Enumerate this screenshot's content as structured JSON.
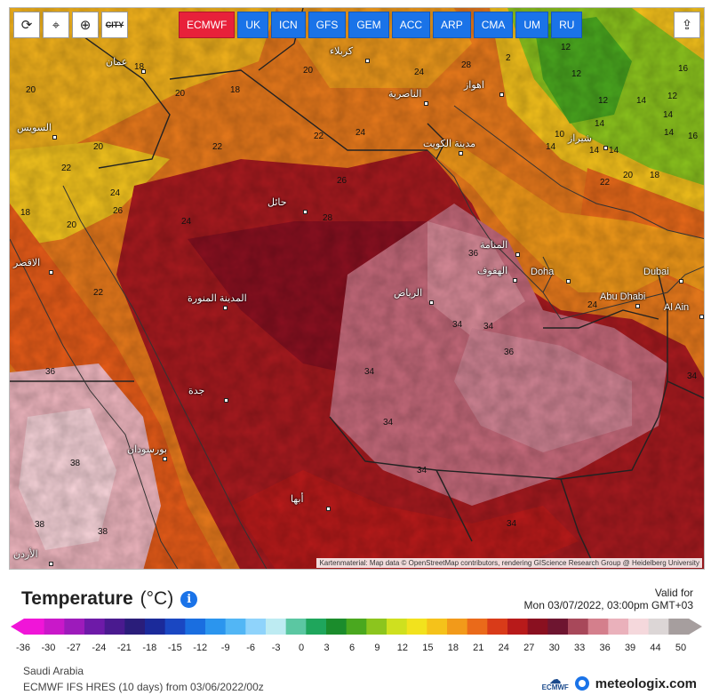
{
  "toolbar": {
    "buttons": [
      {
        "name": "refresh-button",
        "icon": "refresh-icon",
        "glyph": "⟳"
      },
      {
        "name": "location-button",
        "icon": "map-pin-icon",
        "glyph": "⌖"
      },
      {
        "name": "zoom-button",
        "icon": "zoom-icon",
        "glyph": "⊕"
      },
      {
        "name": "city-toggle-button",
        "icon": "city-icon",
        "glyph": "CITY"
      }
    ],
    "models": [
      "ECMWF",
      "UK",
      "ICN",
      "GFS",
      "GEM",
      "ACC",
      "ARP",
      "CMA",
      "UM",
      "RU"
    ],
    "active_model": "ECMWF",
    "share_glyph": "⇪"
  },
  "map": {
    "isotherm_labels": [
      {
        "text": "18",
        "pos": [
          140,
          62
        ]
      },
      {
        "text": "20",
        "pos": [
          330,
          66
        ]
      },
      {
        "text": "18",
        "pos": [
          248,
          88
        ]
      },
      {
        "text": "20",
        "pos": [
          186,
          92
        ]
      },
      {
        "text": "20",
        "pos": [
          94,
          152
        ]
      },
      {
        "text": "22",
        "pos": [
          228,
          152
        ]
      },
      {
        "text": "22",
        "pos": [
          342,
          140
        ]
      },
      {
        "text": "24",
        "pos": [
          389,
          136
        ]
      },
      {
        "text": "24",
        "pos": [
          455,
          68
        ]
      },
      {
        "text": "28",
        "pos": [
          508,
          60
        ]
      },
      {
        "text": "22",
        "pos": [
          58,
          176
        ]
      },
      {
        "text": "24",
        "pos": [
          113,
          204
        ]
      },
      {
        "text": "26",
        "pos": [
          116,
          224
        ]
      },
      {
        "text": "24",
        "pos": [
          193,
          236
        ]
      },
      {
        "text": "28",
        "pos": [
          352,
          232
        ]
      },
      {
        "text": "26",
        "pos": [
          368,
          190
        ]
      },
      {
        "text": "20",
        "pos": [
          64,
          240
        ]
      },
      {
        "text": "22",
        "pos": [
          94,
          316
        ]
      },
      {
        "text": "36",
        "pos": [
          516,
          272
        ]
      },
      {
        "text": "34",
        "pos": [
          498,
          352
        ]
      },
      {
        "text": "34",
        "pos": [
          533,
          354
        ]
      },
      {
        "text": "36",
        "pos": [
          556,
          383
        ]
      },
      {
        "text": "34",
        "pos": [
          399,
          405
        ]
      },
      {
        "text": "34",
        "pos": [
          420,
          462
        ]
      },
      {
        "text": "34",
        "pos": [
          458,
          516
        ]
      },
      {
        "text": "34",
        "pos": [
          559,
          576
        ]
      },
      {
        "text": "34",
        "pos": [
          762,
          410
        ]
      },
      {
        "text": "36",
        "pos": [
          40,
          405
        ]
      },
      {
        "text": "38",
        "pos": [
          68,
          508
        ]
      },
      {
        "text": "38",
        "pos": [
          28,
          577
        ]
      },
      {
        "text": "38",
        "pos": [
          99,
          585
        ]
      },
      {
        "text": "40",
        "pos": [
          84,
          631
        ]
      },
      {
        "text": "24",
        "pos": [
          650,
          330
        ]
      },
      {
        "text": "22",
        "pos": [
          664,
          192
        ]
      },
      {
        "text": "20",
        "pos": [
          690,
          184
        ]
      },
      {
        "text": "18",
        "pos": [
          720,
          184
        ]
      },
      {
        "text": "14",
        "pos": [
          603,
          152
        ]
      },
      {
        "text": "14",
        "pos": [
          652,
          156
        ]
      },
      {
        "text": "14",
        "pos": [
          674,
          156
        ]
      },
      {
        "text": "10",
        "pos": [
          613,
          138
        ]
      },
      {
        "text": "12",
        "pos": [
          620,
          40
        ]
      },
      {
        "text": "12",
        "pos": [
          662,
          100
        ]
      },
      {
        "text": "12",
        "pos": [
          740,
          95
        ]
      },
      {
        "text": "14",
        "pos": [
          705,
          100
        ]
      },
      {
        "text": "14",
        "pos": [
          735,
          116
        ]
      },
      {
        "text": "14",
        "pos": [
          736,
          136
        ]
      },
      {
        "text": "14",
        "pos": [
          658,
          126
        ]
      },
      {
        "text": "12",
        "pos": [
          632,
          70
        ]
      },
      {
        "text": "16",
        "pos": [
          752,
          64
        ]
      },
      {
        "text": "16",
        "pos": [
          763,
          140
        ]
      },
      {
        "text": "18",
        "pos": [
          12,
          226
        ]
      },
      {
        "text": "20",
        "pos": [
          18,
          88
        ]
      },
      {
        "text": "2",
        "pos": [
          558,
          52
        ]
      }
    ],
    "cities": [
      {
        "text": "كربلاء",
        "pos": [
          360,
          44
        ]
      },
      {
        "text": "عمان",
        "pos": [
          108,
          56
        ]
      },
      {
        "text": "الناصرية",
        "pos": [
          426,
          92
        ]
      },
      {
        "text": "اهواز",
        "pos": [
          511,
          82
        ]
      },
      {
        "text": "السويس",
        "pos": [
          8,
          130
        ]
      },
      {
        "text": "مدينة الكويت",
        "pos": [
          465,
          148
        ]
      },
      {
        "text": "شيراز",
        "pos": [
          628,
          142
        ]
      },
      {
        "text": "حائل",
        "pos": [
          290,
          214
        ]
      },
      {
        "text": "المنامة",
        "pos": [
          529,
          262
        ]
      },
      {
        "text": "الهفوف",
        "pos": [
          526,
          291
        ]
      },
      {
        "text": "Doha",
        "pos": [
          586,
          292
        ]
      },
      {
        "text": "Dubai",
        "pos": [
          713,
          292
        ]
      },
      {
        "text": "المدينة المنورة",
        "pos": [
          200,
          322
        ]
      },
      {
        "text": "الرياض",
        "pos": [
          432,
          316
        ]
      },
      {
        "text": "Abu Dhabi",
        "pos": [
          664,
          320
        ]
      },
      {
        "text": "Al Ain",
        "pos": [
          736,
          332
        ]
      },
      {
        "text": "جدة",
        "pos": [
          201,
          426
        ]
      },
      {
        "text": "بورسودان",
        "pos": [
          132,
          492
        ]
      },
      {
        "text": "أبها",
        "pos": [
          316,
          548
        ]
      },
      {
        "text": "الاقصر",
        "pos": [
          4,
          282
        ]
      },
      {
        "text": "الأردن",
        "pos": [
          4,
          610
        ]
      }
    ],
    "attribution": "Kartenmaterial: Map data © OpenStreetMap contributors, rendering GIScience Research Group @ Heidelberg University"
  },
  "legend": {
    "title": "Temperature",
    "unit": "(°C)",
    "info_glyph": "i",
    "valid_for_label": "Valid for",
    "valid_time": "Mon 03/07/2022, 03:00pm GMT+03",
    "ticks": [
      "-36",
      "-30",
      "-27",
      "-24",
      "-21",
      "-18",
      "-15",
      "-12",
      "-9",
      "-6",
      "-3",
      "0",
      "3",
      "6",
      "9",
      "12",
      "15",
      "18",
      "21",
      "24",
      "27",
      "30",
      "33",
      "36",
      "39",
      "44",
      "50"
    ],
    "colors": [
      "#f015d8",
      "#c918c9",
      "#9d1bbb",
      "#6e1aa8",
      "#4a1a8f",
      "#2a1d7a",
      "#1b2a9a",
      "#1a47c2",
      "#1a6ee0",
      "#2b95ee",
      "#52b6f5",
      "#8fd3fb",
      "#bdebf2",
      "#5bc7a2",
      "#1fa65c",
      "#1b8c2c",
      "#4aa81f",
      "#8cc51e",
      "#cfe01f",
      "#f2e21d",
      "#f5c21a",
      "#f29a1a",
      "#ea6a1a",
      "#d93b19",
      "#b81a1a",
      "#8a1020",
      "#6e1530",
      "#a8485a",
      "#d47f8c",
      "#eab1bb",
      "#f5d8dc",
      "#dcd6d6",
      "#a69e9e"
    ]
  },
  "footer": {
    "region": "Saudi Arabia",
    "model_run": "ECMWF IFS HRES (10 days) from 03/06/2022/00z",
    "ecmwf_logo": "ECMWF",
    "brand": "meteologix.com",
    "brand_icon": "meteologix-logo-icon"
  }
}
